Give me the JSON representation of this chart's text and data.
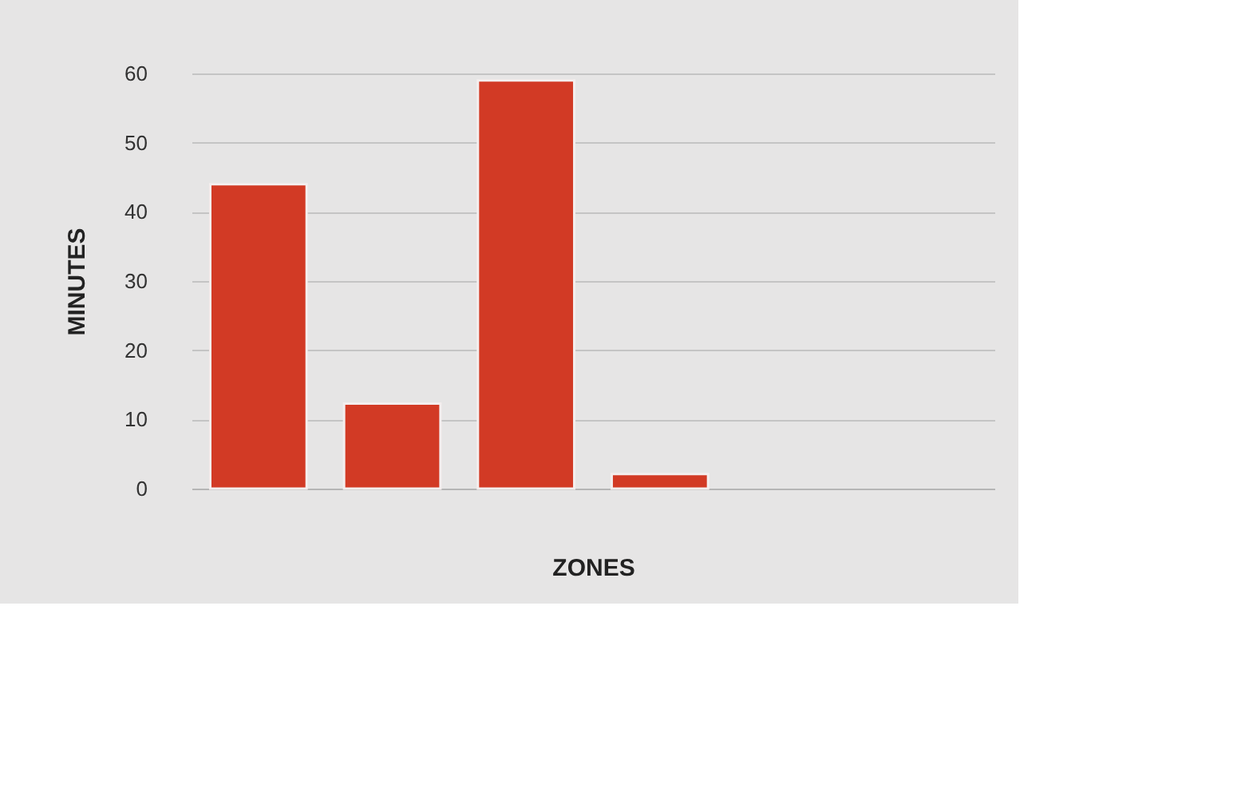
{
  "chart_data": {
    "type": "bar",
    "xlabel": "ZONES",
    "ylabel": "MINUTES",
    "categories": [
      null,
      null,
      null,
      null,
      null,
      null
    ],
    "values": [
      44,
      12.3,
      59,
      2.1,
      null,
      null
    ],
    "color": "#d23a25",
    "ylim": [
      0,
      60
    ],
    "yticks": [
      0,
      10,
      20,
      30,
      40,
      50,
      60
    ],
    "grid": "y"
  }
}
